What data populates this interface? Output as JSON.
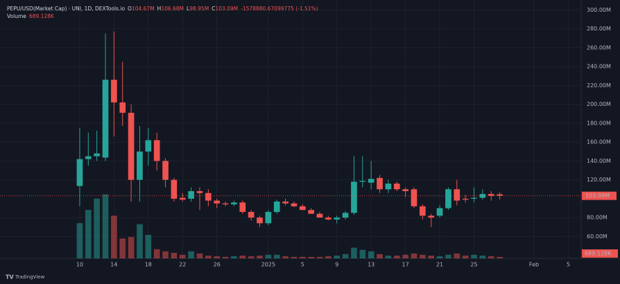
{
  "chart_data": {
    "type": "candlestick",
    "title": "PEPU/USD(Market Cap) · UNI, 1D, DEXTools.io",
    "header_values": [
      {
        "key": "O",
        "text": "104.67M"
      },
      {
        "key": "H",
        "text": "106.68M"
      },
      {
        "key": "L",
        "text": "98.95M"
      },
      {
        "key": "C",
        "text": "103.09M"
      }
    ],
    "change_text": "-1578880.67099775 (-1.51%)",
    "volume_title": "Volume",
    "volume_text": "689.128K",
    "branding": "TradingView",
    "up_color": "#26a69a",
    "down_color": "#ef5350",
    "x": [
      0,
      1,
      2,
      3,
      4,
      5,
      6,
      7,
      8,
      9,
      10,
      11,
      12,
      13,
      14,
      15,
      16,
      17,
      18,
      19,
      20,
      21,
      22,
      23,
      24,
      25,
      26,
      27,
      28,
      29,
      30,
      31,
      32,
      33,
      34,
      35,
      36,
      37,
      38,
      39,
      40,
      41,
      42,
      43,
      44,
      45,
      46,
      47,
      48,
      49
    ],
    "open": [
      113.5,
      142,
      145,
      143.6,
      226,
      202,
      191,
      120,
      150,
      162,
      140,
      120,
      101,
      100,
      108,
      106,
      98,
      95,
      94,
      96,
      86,
      80,
      74,
      86,
      97,
      95,
      92,
      88,
      84,
      80,
      78,
      80,
      85,
      118,
      117,
      122,
      110,
      116,
      110,
      110,
      92,
      82,
      82,
      90,
      110,
      100,
      100,
      101,
      105,
      104.67
    ],
    "high": [
      175,
      170,
      172,
      275,
      277,
      245,
      200,
      177,
      175,
      170,
      143,
      122,
      106,
      112,
      112,
      110,
      100,
      97,
      98,
      98,
      88,
      82,
      88,
      99,
      100,
      97,
      94,
      90,
      86,
      82,
      82,
      87,
      145,
      145,
      140,
      125,
      120,
      118,
      112,
      112,
      94,
      84,
      93,
      112,
      120,
      104,
      112,
      110,
      108,
      106.68
    ],
    "low": [
      92,
      135,
      140,
      140,
      166,
      177,
      97,
      97,
      135,
      130,
      112,
      97,
      97,
      97,
      88,
      92,
      90,
      92,
      92,
      84,
      77,
      70,
      72,
      84,
      93,
      91,
      88,
      84,
      80,
      77,
      74,
      78,
      83,
      112,
      110,
      106,
      106,
      108,
      102,
      90,
      78,
      70,
      80,
      88,
      93,
      96,
      96,
      99,
      98,
      98.95
    ],
    "close": [
      142,
      145,
      148,
      226,
      202,
      191,
      120,
      150,
      162,
      140,
      120,
      100,
      99,
      108,
      106,
      98,
      95,
      94,
      96,
      86,
      80,
      74,
      86,
      97,
      95,
      92,
      88,
      84,
      80,
      78,
      80,
      85,
      118,
      119,
      121,
      110,
      116,
      110,
      108,
      92,
      82,
      80,
      90,
      110,
      98,
      99,
      101,
      105,
      103,
      103.09
    ],
    "volume": [
      16500,
      22700,
      28000,
      30000,
      20000,
      9300,
      10000,
      16000,
      11000,
      4300,
      3300,
      2600,
      1700,
      3300,
      2300,
      1300,
      1000,
      700,
      1000,
      1300,
      1000,
      1300,
      1700,
      1700,
      1000,
      700,
      700,
      700,
      700,
      1000,
      1300,
      2000,
      5000,
      4000,
      3300,
      2000,
      1300,
      1300,
      1700,
      2300,
      1700,
      1300,
      1000,
      1700,
      2300,
      1300,
      1700,
      1300,
      1000,
      689.128
    ],
    "volume_ylim": [
      0,
      121000
    ],
    "volume_marker": {
      "value": 689.128,
      "label": "689.128K"
    },
    "price_marker": {
      "value": 103.09,
      "label": "103.09M"
    },
    "xlim": [
      -9.3,
      58.5
    ],
    "xticks": [
      {
        "value": 0,
        "label": "10"
      },
      {
        "value": 4,
        "label": "14"
      },
      {
        "value": 8,
        "label": "18"
      },
      {
        "value": 12,
        "label": "22"
      },
      {
        "value": 16,
        "label": "26"
      },
      {
        "value": 22,
        "label": "2025"
      },
      {
        "value": 26,
        "label": "5"
      },
      {
        "value": 30,
        "label": "9"
      },
      {
        "value": 34,
        "label": "13"
      },
      {
        "value": 38,
        "label": "17"
      },
      {
        "value": 42,
        "label": "21"
      },
      {
        "value": 46,
        "label": "25"
      },
      {
        "value": 53,
        "label": "Feb"
      },
      {
        "value": 57,
        "label": "5"
      }
    ],
    "ylim": [
      36.8,
      310.5
    ],
    "yticks": [
      {
        "value": 60,
        "label": "60.00M"
      },
      {
        "value": 80,
        "label": "80.00M"
      },
      {
        "value": 120,
        "label": "120.00M"
      },
      {
        "value": 140,
        "label": "140.00M"
      },
      {
        "value": 160,
        "label": "160.00M"
      },
      {
        "value": 180,
        "label": "180.00M"
      },
      {
        "value": 200,
        "label": "200.00M"
      },
      {
        "value": 220,
        "label": "220.00M"
      },
      {
        "value": 240,
        "label": "240.00M"
      },
      {
        "value": 260,
        "label": "260.00M"
      },
      {
        "value": 280,
        "label": "280.00M"
      },
      {
        "value": 300,
        "label": "300.00M"
      }
    ],
    "grid": true
  }
}
